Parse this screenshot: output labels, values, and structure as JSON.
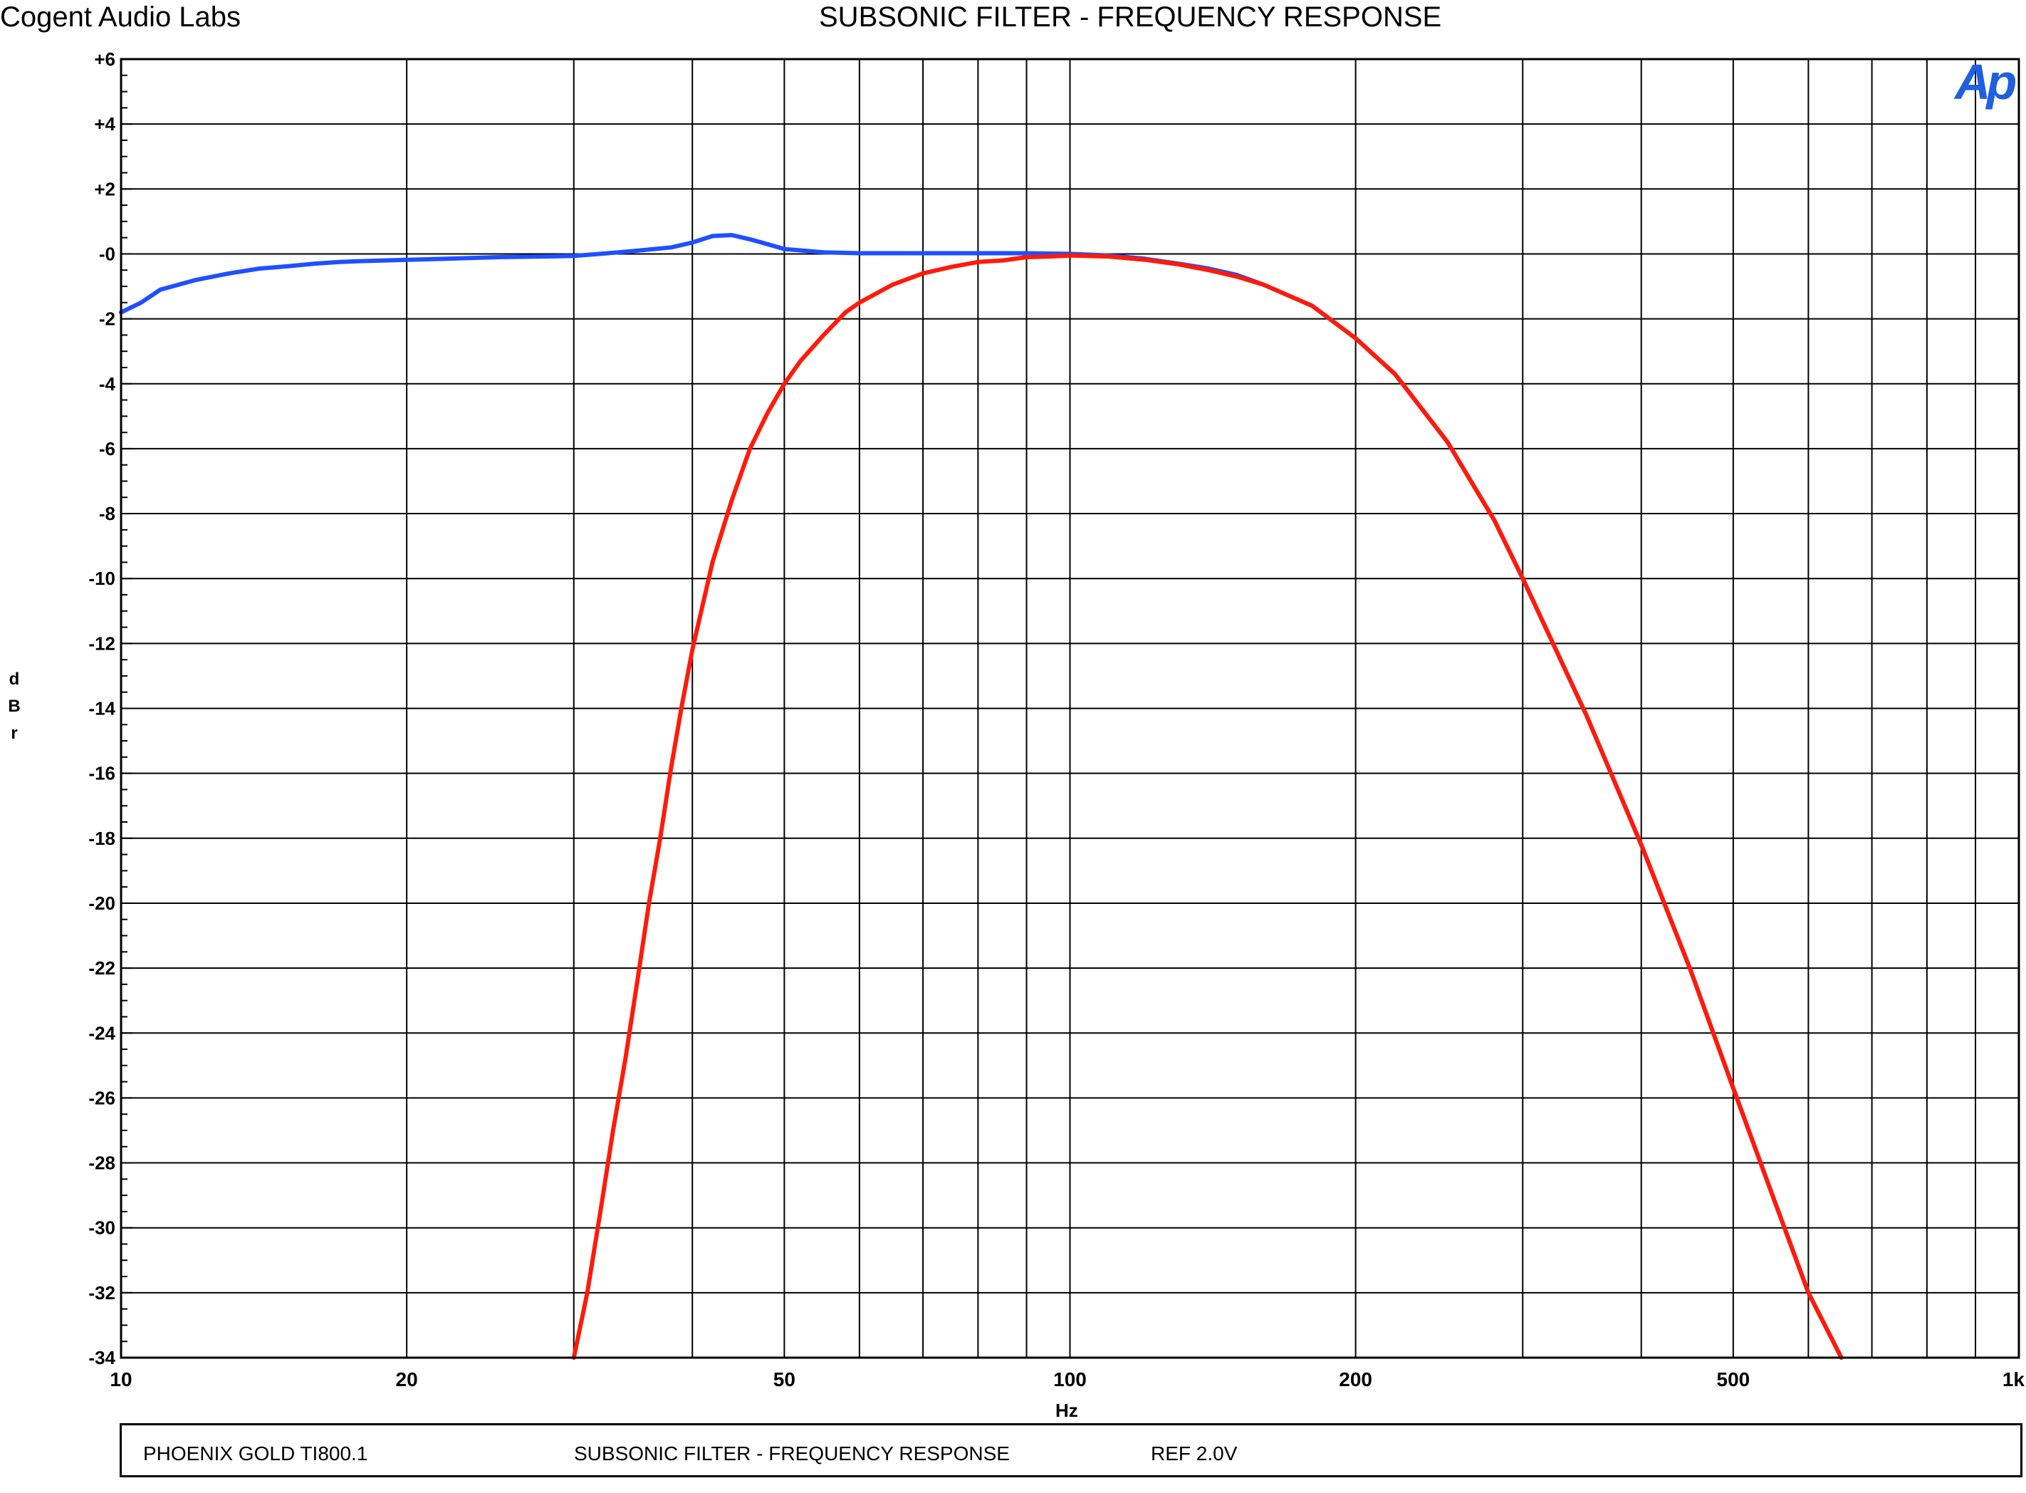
{
  "header": {
    "company": "Cogent Audio Labs",
    "title": "SUBSONIC FILTER  -  FREQUENCY RESPONSE"
  },
  "logo": {
    "text": "Ap",
    "color": "#1f5fe0"
  },
  "footer": {
    "left": "PHOENIX GOLD  TI800.1",
    "middle": "SUBSONIC FILTER  -  FREQUENCY RESPONSE",
    "right": "REF 2.0V"
  },
  "chart_data": {
    "type": "line",
    "title": "SUBSONIC FILTER  -  FREQUENCY RESPONSE",
    "xlabel": "Hz",
    "ylabel": "dBr",
    "ylabel_chars": [
      "d",
      "B",
      "r"
    ],
    "xscale": "log",
    "xlim": [
      10,
      1000
    ],
    "ylim": [
      -34,
      6
    ],
    "x_ticks": [
      10,
      20,
      50,
      100,
      200,
      500,
      1000
    ],
    "x_tick_labels": [
      "10",
      "20",
      "50",
      "100",
      "200",
      "500",
      "1k"
    ],
    "y_ticks": [
      6,
      4,
      2,
      0,
      -2,
      -4,
      -6,
      -8,
      -10,
      -12,
      -14,
      -16,
      -18,
      -20,
      -22,
      -24,
      -26,
      -28,
      -30,
      -32,
      -34
    ],
    "y_tick_labels": [
      "+6",
      "+4",
      "+2",
      "-0",
      "-2",
      "-4",
      "-6",
      "-8",
      "-10",
      "-12",
      "-14",
      "-16",
      "-18",
      "-20",
      "-22",
      "-24",
      "-26",
      "-28",
      "-30",
      "-32",
      "-34"
    ],
    "grid": true,
    "series": [
      {
        "color": "#1f4fff",
        "points": [
          [
            10,
            -1.8
          ],
          [
            10.5,
            -1.5
          ],
          [
            11,
            -1.1
          ],
          [
            12,
            -0.8
          ],
          [
            13,
            -0.6
          ],
          [
            14,
            -0.45
          ],
          [
            15,
            -0.38
          ],
          [
            16,
            -0.3
          ],
          [
            17,
            -0.25
          ],
          [
            18,
            -0.22
          ],
          [
            20,
            -0.18
          ],
          [
            22,
            -0.15
          ],
          [
            25,
            -0.1
          ],
          [
            28,
            -0.08
          ],
          [
            30,
            -0.06
          ],
          [
            32,
            0.0
          ],
          [
            35,
            0.1
          ],
          [
            38,
            0.2
          ],
          [
            40,
            0.35
          ],
          [
            42,
            0.55
          ],
          [
            44,
            0.58
          ],
          [
            46,
            0.45
          ],
          [
            48,
            0.3
          ],
          [
            50,
            0.15
          ],
          [
            55,
            0.05
          ],
          [
            60,
            0.02
          ],
          [
            70,
            0.02
          ],
          [
            80,
            0.02
          ],
          [
            90,
            0.02
          ],
          [
            100,
            0.0
          ],
          [
            110,
            -0.05
          ],
          [
            120,
            -0.15
          ],
          [
            130,
            -0.3
          ],
          [
            140,
            -0.45
          ],
          [
            150,
            -0.65
          ],
          [
            160,
            -0.95
          ],
          [
            180,
            -1.6
          ],
          [
            200,
            -2.6
          ],
          [
            220,
            -3.7
          ],
          [
            250,
            -5.8
          ],
          [
            280,
            -8.2
          ],
          [
            300,
            -10.0
          ],
          [
            350,
            -14.2
          ],
          [
            400,
            -18.2
          ],
          [
            450,
            -22.0
          ],
          [
            500,
            -25.7
          ],
          [
            550,
            -29.0
          ],
          [
            600,
            -32.0
          ],
          [
            650,
            -34.0
          ]
        ]
      },
      {
        "color": "#ff1a0a",
        "points": [
          [
            30,
            -34.0
          ],
          [
            31,
            -32.0
          ],
          [
            32,
            -29.5
          ],
          [
            33,
            -27.0
          ],
          [
            34,
            -24.8
          ],
          [
            35,
            -22.4
          ],
          [
            36,
            -20.0
          ],
          [
            37,
            -18.0
          ],
          [
            38,
            -15.8
          ],
          [
            39,
            -13.9
          ],
          [
            40,
            -12.2
          ],
          [
            42,
            -9.5
          ],
          [
            44,
            -7.6
          ],
          [
            46,
            -6.0
          ],
          [
            48,
            -4.9
          ],
          [
            50,
            -4.0
          ],
          [
            52,
            -3.3
          ],
          [
            55,
            -2.5
          ],
          [
            58,
            -1.8
          ],
          [
            60,
            -1.5
          ],
          [
            65,
            -0.95
          ],
          [
            70,
            -0.6
          ],
          [
            75,
            -0.4
          ],
          [
            80,
            -0.25
          ],
          [
            85,
            -0.2
          ],
          [
            90,
            -0.1
          ],
          [
            95,
            -0.08
          ],
          [
            100,
            -0.05
          ],
          [
            110,
            -0.08
          ],
          [
            120,
            -0.18
          ],
          [
            130,
            -0.32
          ],
          [
            140,
            -0.5
          ],
          [
            150,
            -0.7
          ],
          [
            160,
            -0.95
          ],
          [
            180,
            -1.6
          ],
          [
            200,
            -2.6
          ],
          [
            220,
            -3.7
          ],
          [
            250,
            -5.8
          ],
          [
            280,
            -8.2
          ],
          [
            300,
            -10.0
          ],
          [
            350,
            -14.2
          ],
          [
            400,
            -18.2
          ],
          [
            450,
            -22.0
          ],
          [
            500,
            -25.7
          ],
          [
            550,
            -29.0
          ],
          [
            600,
            -32.0
          ],
          [
            650,
            -34.0
          ]
        ]
      }
    ]
  }
}
